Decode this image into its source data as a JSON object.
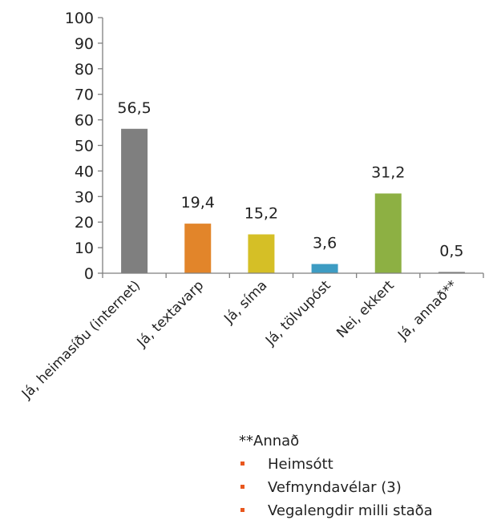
{
  "chart_data": {
    "type": "bar",
    "title": "",
    "xlabel": "",
    "ylabel": "",
    "ylim": [
      0,
      100
    ],
    "yticks": [
      0,
      10,
      20,
      30,
      40,
      50,
      60,
      70,
      80,
      90,
      100
    ],
    "categories": [
      "Já, heimasíðu (internet)",
      "Já, textavarp",
      "Já, síma",
      "Já, tölvupóst",
      "Nei, ekkert",
      "Já, annað**"
    ],
    "values": [
      56.5,
      19.4,
      15.2,
      3.6,
      31.2,
      0.5
    ],
    "value_labels": [
      "56,5",
      "19,4",
      "15,2",
      "3,6",
      "31,2",
      "0,5"
    ],
    "colors": [
      "#7f7f7f",
      "#e2852a",
      "#d5bf26",
      "#3d9cc3",
      "#8db043",
      "#7f7f7f"
    ],
    "grid": false,
    "legend": "none"
  },
  "note": {
    "title": "**Annað",
    "items": [
      "Heimsótt",
      "Vefmyndavélar (3)",
      "Vegalengdir milli staða"
    ]
  }
}
